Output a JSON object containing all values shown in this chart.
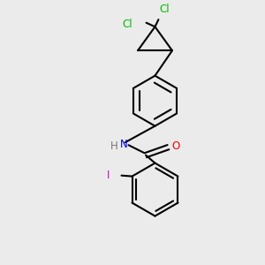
{
  "background_color": "#ebebeb",
  "bond_color": "#000000",
  "bond_width": 1.5,
  "atom_labels": {
    "Cl1": {
      "text": "Cl",
      "color": "#00bb00",
      "fontsize": 8.5
    },
    "Cl2": {
      "text": "Cl",
      "color": "#00bb00",
      "fontsize": 8.5
    },
    "N": {
      "text": "N",
      "color": "#0000ee",
      "fontsize": 8.5
    },
    "H": {
      "text": "H",
      "color": "#777777",
      "fontsize": 8.5
    },
    "O": {
      "text": "O",
      "color": "#ee0000",
      "fontsize": 8.5
    },
    "I": {
      "text": "I",
      "color": "#cc00cc",
      "fontsize": 8.5
    }
  },
  "figsize": [
    3.0,
    3.0
  ],
  "dpi": 100,
  "xlim": [
    0,
    10
  ],
  "ylim": [
    0,
    10
  ]
}
